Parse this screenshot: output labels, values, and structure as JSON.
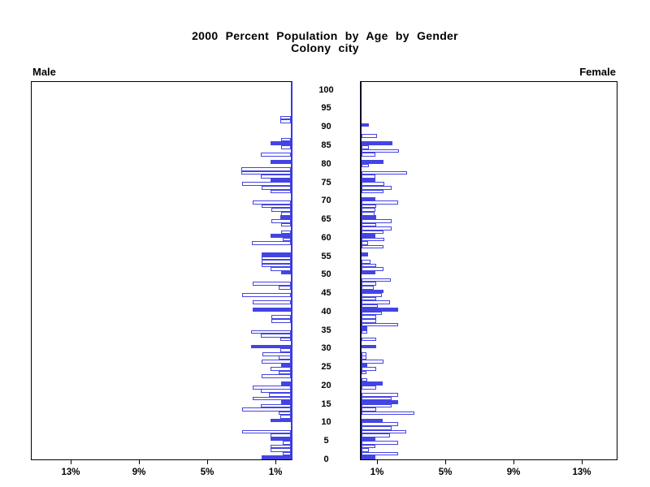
{
  "title": {
    "line1": "2000 Percent Population by Age by Gender",
    "line2": "Colony city"
  },
  "panel_labels": {
    "male": "Male",
    "female": "Female"
  },
  "age_axis": {
    "tick_labels": [
      "0",
      "5",
      "10",
      "15",
      "20",
      "25",
      "30",
      "35",
      "40",
      "45",
      "50",
      "55",
      "60",
      "65",
      "70",
      "75",
      "80",
      "85",
      "90",
      "95",
      "100"
    ],
    "tick_interval_years": 5
  },
  "percent_axis": {
    "male_ticks": [
      {
        "label": "13%",
        "percent": 13
      },
      {
        "label": "9%",
        "percent": 9
      },
      {
        "label": "5%",
        "percent": 5
      },
      {
        "label": "1%",
        "percent": 1
      }
    ],
    "female_ticks": [
      {
        "label": "1%",
        "percent": 1
      },
      {
        "label": "5%",
        "percent": 5
      },
      {
        "label": "9%",
        "percent": 9
      },
      {
        "label": "13%",
        "percent": 13
      }
    ],
    "max_percent": 15
  },
  "colors": {
    "bar_blue": "#4444e4",
    "hollow_fill": "#ffffff",
    "frame_black": "#000000",
    "male_axis_blue": "#3a3add",
    "female_axis_dark": "#0d0d2b"
  },
  "chart_data": {
    "type": "bar",
    "subtype": "population-pyramid",
    "title": "2000 Percent Population by Age by Gender",
    "subtitle": "Colony city",
    "unit": "percent of total population",
    "orientation": "horizontal, male bars grow left from center, female bars grow right",
    "age_start": 0,
    "age_interval": 1,
    "fill_rule": "bars at ages that are multiples of 5 are solid blue; all other ages are white with blue outline",
    "xlim_percent": [
      0,
      15
    ],
    "grid": false,
    "series": [
      {
        "name": "Male",
        "values": [
          1.71,
          0.5,
          1.2,
          1.2,
          0.5,
          1.17,
          1.2,
          2.88,
          0,
          0,
          1.2,
          0.6,
          0.7,
          2.88,
          1.74,
          0.59,
          2.26,
          1.28,
          1.74,
          2.26,
          0.57,
          0,
          1.71,
          0.7,
          1.17,
          0.55,
          1.71,
          0.7,
          1.67,
          0.6,
          2.35,
          0,
          0.6,
          1.75,
          2.35,
          0,
          0,
          1.14,
          1.14,
          0,
          2.26,
          0,
          2.26,
          0,
          2.88,
          0,
          0.7,
          2.26,
          0,
          0,
          0.59,
          1.2,
          1.71,
          1.71,
          1.71,
          1.71,
          0,
          0,
          2.3,
          0.5,
          1.2,
          0.55,
          0,
          0.55,
          1.12,
          0.62,
          0.55,
          1.12,
          1.71,
          2.26,
          0,
          0,
          1.2,
          1.71,
          2.88,
          1.2,
          1.74,
          2.9,
          2.9,
          0,
          1.2,
          0,
          1.74,
          0,
          0.55,
          1.2,
          0.59,
          0,
          0,
          0,
          0,
          0.6,
          0.62
        ]
      },
      {
        "name": "Female",
        "values": [
          0.79,
          2.12,
          0.45,
          0.79,
          2.12,
          0.79,
          1.67,
          2.63,
          1.74,
          2.13,
          1.23,
          0,
          3.08,
          0.84,
          1.74,
          2.13,
          1.74,
          2.13,
          0,
          0.84,
          1.23,
          0.34,
          0,
          0.3,
          0.84,
          0.34,
          1.28,
          0.3,
          0.3,
          0,
          0.84,
          0,
          0.84,
          0,
          0.34,
          0.33,
          2.16,
          0.86,
          0.86,
          1.21,
          2.16,
          0.97,
          1.68,
          0.86,
          1.21,
          1.29,
          0.73,
          0.86,
          1.73,
          0,
          0.81,
          1.28,
          0.84,
          0.53,
          0,
          0.37,
          0,
          1.28,
          0.37,
          1.31,
          0.81,
          1.28,
          1.74,
          0.84,
          1.74,
          0.84,
          0.76,
          0.81,
          0.84,
          2.13,
          0.81,
          0,
          1.28,
          1.74,
          1.31,
          0.81,
          0.8,
          2.68,
          0,
          0.42,
          1.28,
          0,
          0.81,
          2.21,
          0.42,
          1.79,
          0,
          0.89,
          0,
          0,
          0.45,
          0,
          0
        ]
      }
    ]
  }
}
